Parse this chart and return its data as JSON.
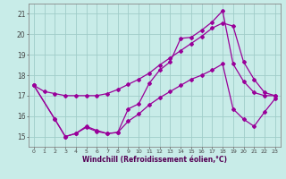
{
  "xlabel": "Windchill (Refroidissement éolien,°C)",
  "background_color": "#c8ece8",
  "grid_color": "#a0ccc8",
  "line_color": "#990099",
  "xlim": [
    -0.5,
    23.5
  ],
  "ylim": [
    14.5,
    21.5
  ],
  "yticks": [
    15,
    16,
    17,
    18,
    19,
    20,
    21
  ],
  "xticks": [
    0,
    1,
    2,
    3,
    4,
    5,
    6,
    7,
    8,
    9,
    10,
    11,
    12,
    13,
    14,
    15,
    16,
    17,
    18,
    19,
    20,
    21,
    22,
    23
  ],
  "line1_x": [
    0,
    1,
    2,
    3,
    4,
    5,
    6,
    7,
    8,
    9,
    10,
    11,
    12,
    13,
    14,
    15,
    16,
    17,
    18,
    19,
    20,
    21,
    22,
    23
  ],
  "line1_y": [
    17.5,
    17.2,
    17.1,
    17.0,
    17.0,
    17.0,
    17.0,
    17.1,
    17.3,
    17.55,
    17.8,
    18.1,
    18.5,
    18.85,
    19.2,
    19.55,
    19.9,
    20.3,
    20.55,
    20.4,
    18.65,
    17.8,
    17.15,
    17.0
  ],
  "line2_x": [
    0,
    2,
    3,
    4,
    5,
    6,
    7,
    8,
    9,
    10,
    11,
    12,
    13,
    14,
    15,
    16,
    17,
    18,
    19,
    20,
    21,
    22,
    23
  ],
  "line2_y": [
    17.5,
    15.85,
    15.0,
    15.15,
    15.45,
    15.25,
    15.15,
    15.2,
    16.35,
    16.6,
    17.6,
    18.25,
    18.65,
    19.8,
    19.85,
    20.2,
    20.6,
    21.15,
    18.55,
    17.7,
    17.15,
    17.0,
    17.0
  ],
  "line3_x": [
    0,
    2,
    3,
    4,
    5,
    6,
    7,
    8,
    9,
    10,
    11,
    12,
    13,
    14,
    15,
    16,
    17,
    18,
    19,
    20,
    21,
    22,
    23
  ],
  "line3_y": [
    17.5,
    15.85,
    15.0,
    15.15,
    15.5,
    15.3,
    15.15,
    15.2,
    15.75,
    16.1,
    16.55,
    16.9,
    17.2,
    17.5,
    17.8,
    18.0,
    18.25,
    18.55,
    16.35,
    15.85,
    15.5,
    16.2,
    16.85
  ]
}
